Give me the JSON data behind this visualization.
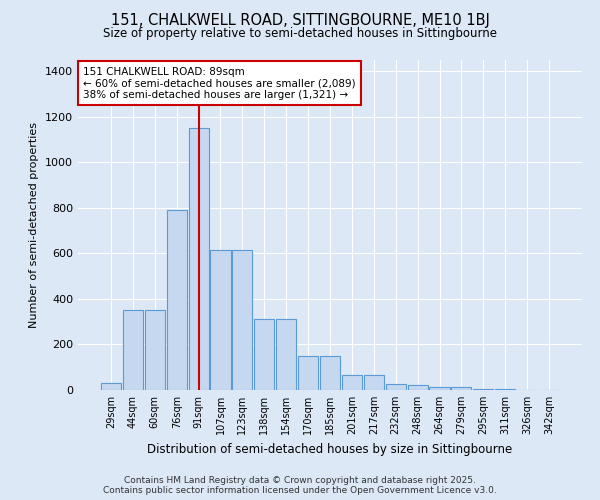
{
  "title1": "151, CHALKWELL ROAD, SITTINGBOURNE, ME10 1BJ",
  "title2": "Size of property relative to semi-detached houses in Sittingbourne",
  "xlabel": "Distribution of semi-detached houses by size in Sittingbourne",
  "ylabel": "Number of semi-detached properties",
  "bar_labels": [
    "29sqm",
    "44sqm",
    "60sqm",
    "76sqm",
    "91sqm",
    "107sqm",
    "123sqm",
    "138sqm",
    "154sqm",
    "170sqm",
    "185sqm",
    "201sqm",
    "217sqm",
    "232sqm",
    "248sqm",
    "264sqm",
    "279sqm",
    "295sqm",
    "311sqm",
    "326sqm",
    "342sqm"
  ],
  "bar_values": [
    30,
    350,
    350,
    790,
    1150,
    615,
    615,
    310,
    310,
    150,
    150,
    65,
    65,
    25,
    20,
    15,
    15,
    5,
    5,
    0,
    0
  ],
  "bar_color": "#c5d8f0",
  "bar_edge_color": "#5b9bd5",
  "vline_bar_index": 4,
  "vline_color": "#cc0000",
  "annotation_title": "151 CHALKWELL ROAD: 89sqm",
  "annotation_line1": "← 60% of semi-detached houses are smaller (2,089)",
  "annotation_line2": "38% of semi-detached houses are larger (1,321) →",
  "annotation_box_color": "#cc0000",
  "bg_color": "#dce8f5",
  "plot_bg_color": "#dce8f5",
  "ylim": [
    0,
    1450
  ],
  "yticks": [
    0,
    200,
    400,
    600,
    800,
    1000,
    1200,
    1400
  ],
  "footer1": "Contains HM Land Registry data © Crown copyright and database right 2025.",
  "footer2": "Contains public sector information licensed under the Open Government Licence v3.0."
}
